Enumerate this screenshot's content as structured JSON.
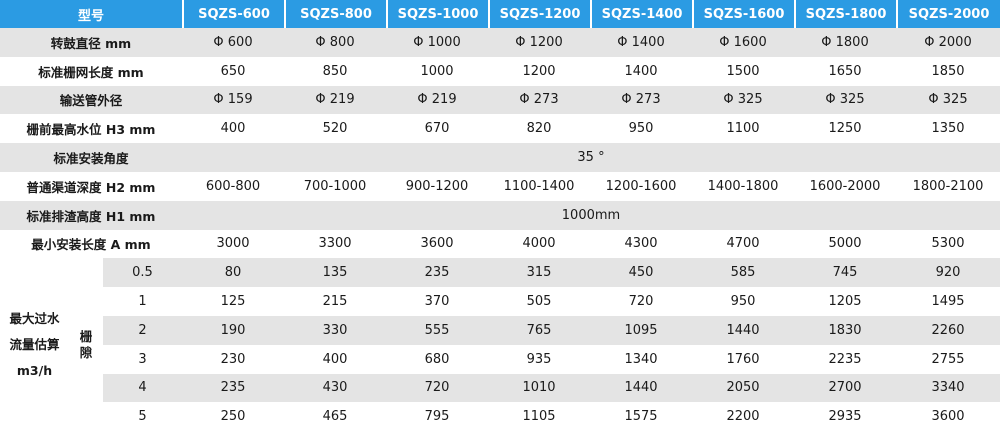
{
  "header": {
    "label": "型号",
    "models": [
      "SQZS-600",
      "SQZS-800",
      "SQZS-1000",
      "SQZS-1200",
      "SQZS-1400",
      "SQZS-1600",
      "SQZS-1800",
      "SQZS-2000"
    ]
  },
  "rows": {
    "drum_diameter": {
      "label": "转鼓直径 mm",
      "values": [
        "Φ 600",
        "Φ 800",
        "Φ 1000",
        "Φ 1200",
        "Φ 1400",
        "Φ 1600",
        "Φ 1800",
        "Φ 2000"
      ]
    },
    "screen_length": {
      "label": "标准栅网长度 mm",
      "values": [
        "650",
        "850",
        "1000",
        "1200",
        "1400",
        "1500",
        "1650",
        "1850"
      ]
    },
    "pipe_diameter": {
      "label": "输送管外径",
      "values": [
        "Φ 159",
        "Φ 219",
        "Φ 219",
        "Φ 273",
        "Φ 273",
        "Φ 325",
        "Φ 325",
        "Φ 325"
      ]
    },
    "water_level": {
      "label": "栅前最高水位 H3  mm",
      "values": [
        "400",
        "520",
        "670",
        "820",
        "950",
        "1100",
        "1250",
        "1350"
      ]
    },
    "install_angle": {
      "label": "标准安装角度",
      "value": "35 °"
    },
    "channel_depth": {
      "label": "普通渠道深度 H2  mm",
      "values": [
        "600-800",
        "700-1000",
        "900-1200",
        "1100-1400",
        "1200-1600",
        "1400-1800",
        "1600-2000",
        "1800-2100"
      ]
    },
    "discharge_height": {
      "label": "标准排渣高度 H1  mm",
      "value": "1000mm"
    },
    "min_length": {
      "label": "最小安装长度 A  mm",
      "values": [
        "3000",
        "3300",
        "3600",
        "4000",
        "4300",
        "4700",
        "5000",
        "5300"
      ]
    }
  },
  "flow": {
    "label_lines": [
      "最大过水",
      "流量估算",
      "m3/h"
    ],
    "gap_label_chars": [
      "栅",
      "隙"
    ],
    "rows": [
      {
        "gap": "0.5",
        "values": [
          "80",
          "135",
          "235",
          "315",
          "450",
          "585",
          "745",
          "920"
        ]
      },
      {
        "gap": "1",
        "values": [
          "125",
          "215",
          "370",
          "505",
          "720",
          "950",
          "1205",
          "1495"
        ]
      },
      {
        "gap": "2",
        "values": [
          "190",
          "330",
          "555",
          "765",
          "1095",
          "1440",
          "1830",
          "2260"
        ]
      },
      {
        "gap": "3",
        "values": [
          "230",
          "400",
          "680",
          "935",
          "1340",
          "1760",
          "2235",
          "2755"
        ]
      },
      {
        "gap": "4",
        "values": [
          "235",
          "430",
          "720",
          "1010",
          "1440",
          "2050",
          "2700",
          "3340"
        ]
      },
      {
        "gap": "5",
        "values": [
          "250",
          "465",
          "795",
          "1105",
          "1575",
          "2200",
          "2935",
          "3600"
        ]
      }
    ]
  }
}
